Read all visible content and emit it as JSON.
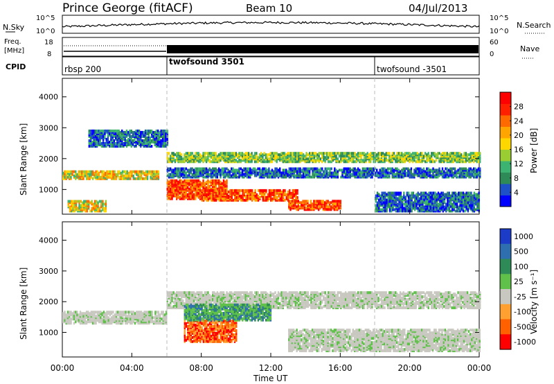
{
  "header": {
    "title": "Prince George (fitACF)",
    "beam": "Beam 10",
    "date": "04/Jul/2013"
  },
  "noise_panel": {
    "left_label": "N.Sky",
    "left_ticks": [
      "10^5",
      "10^0"
    ],
    "right_label": "N.Search",
    "right_ticks": [
      "10^5",
      "10^0"
    ]
  },
  "freq_panel": {
    "left_label_1": "Freq.",
    "left_label_2": "[MHz]",
    "left_ticks": [
      "18",
      "8"
    ],
    "right_label": "Nave",
    "right_ticks": [
      "60",
      "0"
    ]
  },
  "cpid_panel": {
    "label": "CPID",
    "segments": [
      {
        "name": "rbsp 200",
        "start_h": 0
      },
      {
        "name": "twofsound 3501",
        "start_h": 6
      },
      {
        "name": "twofsound -3501",
        "start_h": 18
      }
    ]
  },
  "axes": {
    "x_label": "Time UT",
    "x_ticks": [
      "00:00",
      "04:00",
      "08:00",
      "12:00",
      "16:00",
      "20:00",
      "00:00"
    ],
    "y_label": "Slant Range [km]",
    "y_ticks": [
      "1000",
      "2000",
      "3000",
      "4000"
    ]
  },
  "power_colorbar": {
    "label": "Power [dB]",
    "ticks": [
      "4",
      "8",
      "12",
      "16",
      "20",
      "24",
      "28"
    ],
    "colors": [
      "#0000ff",
      "#1e50c8",
      "#2e8b57",
      "#3cb371",
      "#9acd32",
      "#ffd700",
      "#ffa500",
      "#ff6a00",
      "#ff2000",
      "#ff0000"
    ]
  },
  "velocity_colorbar": {
    "label": "Velocity [m s⁻¹]",
    "ticks": [
      "1000",
      "500",
      "100",
      "25",
      "-25",
      "-100",
      "-500",
      "-1000"
    ],
    "colors": [
      "#1c3cc8",
      "#2e6fb0",
      "#2e8b57",
      "#5fc04a",
      "#c8c8c0",
      "#ffa030",
      "#ff6000",
      "#ff0000"
    ]
  },
  "chart_data": [
    {
      "type": "heatmap",
      "name": "Power",
      "x_range_hours": [
        0,
        24
      ],
      "y_range_km": [
        200,
        4600
      ],
      "bands": [
        {
          "t0": 0.0,
          "t1": 5.5,
          "r0": 1350,
          "r1": 1600,
          "level": "mid-high"
        },
        {
          "t0": 0.3,
          "t1": 2.5,
          "r0": 300,
          "r1": 650,
          "level": "mid-high"
        },
        {
          "t0": 1.5,
          "t1": 6.0,
          "r0": 2400,
          "r1": 2900,
          "level": "low"
        },
        {
          "t0": 6.0,
          "t1": 9.5,
          "r0": 700,
          "r1": 1300,
          "level": "high"
        },
        {
          "t0": 8.0,
          "t1": 13.5,
          "r0": 650,
          "r1": 1000,
          "level": "high"
        },
        {
          "t0": 13.0,
          "t1": 16.0,
          "r0": 350,
          "r1": 650,
          "level": "high"
        },
        {
          "t0": 6.0,
          "t1": 24.0,
          "r0": 1400,
          "r1": 1700,
          "level": "low"
        },
        {
          "t0": 6.0,
          "t1": 24.0,
          "r0": 1900,
          "r1": 2200,
          "level": "mid"
        },
        {
          "t0": 18.0,
          "t1": 24.0,
          "r0": 300,
          "r1": 900,
          "level": "low"
        }
      ]
    },
    {
      "type": "heatmap",
      "name": "Velocity",
      "x_range_hours": [
        0,
        24
      ],
      "y_range_km": [
        200,
        4600
      ],
      "bands": [
        {
          "t0": 0.0,
          "t1": 6.0,
          "r0": 1300,
          "r1": 1700,
          "level": "ground"
        },
        {
          "t0": 6.0,
          "t1": 24.0,
          "r0": 1800,
          "r1": 2300,
          "level": "ground"
        },
        {
          "t0": 7.0,
          "t1": 10.0,
          "r0": 700,
          "r1": 1400,
          "level": "negative"
        },
        {
          "t0": 7.0,
          "t1": 12.0,
          "r0": 1400,
          "r1": 1900,
          "level": "positive"
        },
        {
          "t0": 13.0,
          "t1": 24.0,
          "r0": 400,
          "r1": 1100,
          "level": "ground"
        }
      ]
    }
  ]
}
